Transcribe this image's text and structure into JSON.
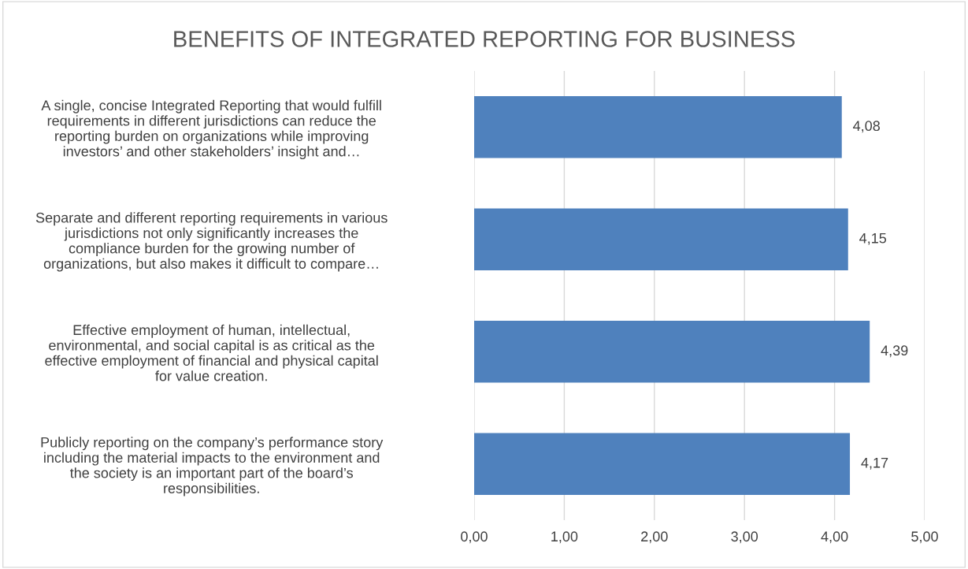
{
  "chart_data": {
    "type": "bar",
    "orientation": "horizontal",
    "title": "BENEFITS OF INTEGRATED REPORTING FOR BUSINESS",
    "categories": [
      "A single, concise Integrated Reporting that would fulfill\nrequirements in different jurisdictions can reduce the\nreporting burden on organizations while improving\ninvestors’ and other stakeholders’ insight and…",
      "Separate and different reporting requirements in various\njurisdictions not only significantly increases the\ncompliance burden for the growing number of\norganizations, but also makes it difficult to compare…",
      "Effective employment of human, intellectual,\nenvironmental, and social capital is as critical as the\neffective employment of financial and physical capital\nfor value creation.",
      "Publicly reporting on the company’s performance story\nincluding the material impacts to the environment and\nthe society is an important part of the board’s\nresponsibilities."
    ],
    "values": [
      4.08,
      4.15,
      4.39,
      4.17
    ],
    "value_labels": [
      "4,08",
      "4,15",
      "4,39",
      "4,17"
    ],
    "color": "#4f81bd",
    "xlim": [
      0,
      5
    ],
    "xticks": [
      {
        "value": 0,
        "label": "0,00"
      },
      {
        "value": 1,
        "label": "1,00"
      },
      {
        "value": 2,
        "label": "2,00"
      },
      {
        "value": 3,
        "label": "3,00"
      },
      {
        "value": 4,
        "label": "4,00"
      },
      {
        "value": 5,
        "label": "5,00"
      }
    ],
    "grid": "x",
    "legend": false
  }
}
